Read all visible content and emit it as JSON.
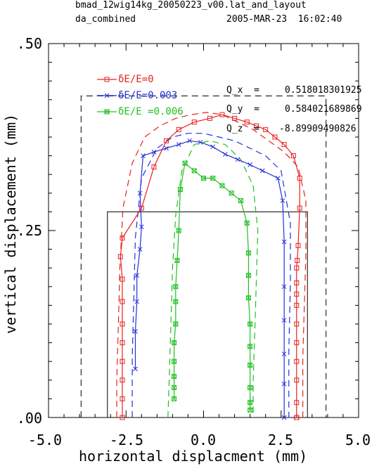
{
  "header": {
    "lattice": "bmad_12wig14kg_20050223_v00.lat_and_layout",
    "subtitle": "da_combined",
    "timestamp": "2005-MAR-23  16:02:40"
  },
  "tunes": [
    {
      "label": "Q_x  =",
      "value": "0.518018301925"
    },
    {
      "label": "Q_y  =",
      "value": "0.584021689869"
    },
    {
      "label": "Q_z  =",
      "value": "-8.89909490826"
    }
  ],
  "chart_data": {
    "type": "line",
    "xlabel": "horizontal displacment (mm)",
    "ylabel": "vertical displacement (mm)",
    "xlim": [
      -5.0,
      5.0
    ],
    "ylim": [
      0.0,
      0.5
    ],
    "xticks": [
      "-5.0",
      "-2.5",
      "0.0",
      "2.5",
      "5.0"
    ],
    "yticks": [
      ".00",
      ".25",
      ".50"
    ],
    "grid": false,
    "legend_position": "top-left",
    "series": [
      {
        "name": "δE/E=0",
        "color": "#e82020",
        "marker": "square",
        "x": [
          -2.62,
          -2.62,
          -2.62,
          -2.62,
          -2.62,
          -2.62,
          -2.62,
          -2.62,
          -2.68,
          -2.62,
          -2.0,
          -1.6,
          -1.2,
          -0.8,
          -0.3,
          0.2,
          0.6,
          1.0,
          1.4,
          1.7,
          2.0,
          2.3,
          2.6,
          2.9,
          3.1,
          3.1,
          3.05,
          3.02,
          3.0,
          3.0,
          3.0,
          3.0,
          3.0,
          3.0,
          3.0,
          3.0,
          3.0,
          3.0,
          3.0,
          3.0
        ],
        "y": [
          0.0,
          0.025,
          0.05,
          0.075,
          0.1,
          0.125,
          0.155,
          0.185,
          0.215,
          0.24,
          0.28,
          0.335,
          0.37,
          0.385,
          0.395,
          0.4,
          0.405,
          0.4,
          0.395,
          0.39,
          0.385,
          0.375,
          0.365,
          0.35,
          0.32,
          0.28,
          0.23,
          0.21,
          0.2,
          0.18,
          0.165,
          0.15,
          0.125,
          0.1,
          0.075,
          0.05,
          0.02,
          0.0,
          0.0,
          0.0
        ]
      },
      {
        "name": "δE/E=0.003",
        "color": "#2030d8",
        "marker": "x",
        "x": [
          -2.2,
          -2.2,
          -2.15,
          -2.15,
          -2.05,
          -2.0,
          -2.05,
          -1.95,
          -1.6,
          -1.2,
          -0.8,
          -0.45,
          -0.1,
          0.3,
          0.7,
          1.1,
          1.5,
          1.9,
          2.4,
          2.55,
          2.6,
          2.6,
          2.6,
          2.6,
          2.6,
          2.6
        ],
        "y": [
          0.065,
          0.115,
          0.155,
          0.19,
          0.225,
          0.255,
          0.3,
          0.35,
          0.355,
          0.36,
          0.365,
          0.37,
          0.368,
          0.362,
          0.352,
          0.345,
          0.338,
          0.33,
          0.32,
          0.29,
          0.235,
          0.175,
          0.13,
          0.085,
          0.045,
          0.0
        ]
      },
      {
        "name": "δE/E =0.006",
        "color": "#20c020",
        "marker": "square-x",
        "x": [
          -0.95,
          -0.95,
          -0.95,
          -0.95,
          -0.95,
          -0.9,
          -0.9,
          -0.9,
          -0.85,
          -0.8,
          -0.75,
          -0.6,
          -0.3,
          0.0,
          0.3,
          0.6,
          0.9,
          1.2,
          1.4,
          1.45,
          1.45,
          1.45,
          1.5,
          1.5,
          1.5,
          1.5,
          1.5,
          1.5
        ],
        "y": [
          0.025,
          0.04,
          0.055,
          0.075,
          0.1,
          0.125,
          0.155,
          0.175,
          0.21,
          0.25,
          0.305,
          0.34,
          0.33,
          0.32,
          0.32,
          0.31,
          0.3,
          0.29,
          0.26,
          0.22,
          0.19,
          0.16,
          0.125,
          0.095,
          0.07,
          0.04,
          0.02,
          0.01
        ]
      }
    ],
    "dashed_envelopes": [
      {
        "color": "#e82020",
        "x": [
          -2.8,
          -2.8,
          -2.75,
          -2.7,
          -2.6,
          -2.3,
          -1.9,
          -1.4,
          -0.9,
          -0.4,
          0.1,
          0.6,
          1.1,
          1.6,
          2.1,
          2.6,
          3.05,
          3.3,
          3.3,
          3.25,
          3.2,
          3.2
        ],
        "y": [
          0.0,
          0.05,
          0.12,
          0.2,
          0.28,
          0.34,
          0.375,
          0.39,
          0.4,
          0.405,
          0.408,
          0.405,
          0.395,
          0.385,
          0.37,
          0.355,
          0.335,
          0.29,
          0.22,
          0.15,
          0.08,
          0.0
        ]
      },
      {
        "color": "#2030d8",
        "x": [
          -2.3,
          -2.3,
          -2.25,
          -2.2,
          -2.0,
          -1.5,
          -1.0,
          -0.5,
          0.0,
          0.5,
          1.0,
          1.5,
          2.0,
          2.5,
          2.8,
          2.8,
          2.75,
          2.75
        ],
        "y": [
          0.0,
          0.08,
          0.16,
          0.24,
          0.32,
          0.36,
          0.375,
          0.38,
          0.38,
          0.375,
          0.37,
          0.36,
          0.35,
          0.33,
          0.26,
          0.18,
          0.09,
          0.0
        ]
      },
      {
        "color": "#20c020",
        "x": [
          -1.15,
          -1.1,
          -1.05,
          -1.0,
          -0.9,
          -0.7,
          -0.3,
          0.2,
          0.7,
          1.2,
          1.6,
          1.75,
          1.7,
          1.65,
          1.6,
          1.6
        ],
        "y": [
          0.0,
          0.06,
          0.13,
          0.2,
          0.27,
          0.33,
          0.365,
          0.37,
          0.365,
          0.345,
          0.31,
          0.25,
          0.18,
          0.11,
          0.05,
          0.0
        ]
      }
    ],
    "reference_boxes": [
      {
        "x": [
          -3.95,
          3.95
        ],
        "y": [
          0.0,
          0.43
        ],
        "style": "dashed"
      },
      {
        "x": [
          -3.1,
          3.35
        ],
        "y": [
          0.0,
          0.275
        ],
        "style": "solid"
      }
    ]
  }
}
